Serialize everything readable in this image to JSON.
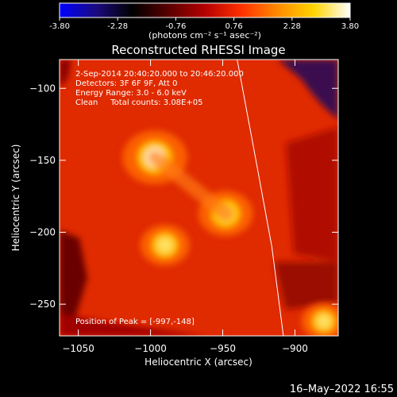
{
  "colorbar": {
    "ticks": [
      "-3.80",
      "-2.28",
      "-0.76",
      "0.76",
      "2.28",
      "3.80"
    ],
    "unit_label": "(photons cm⁻² s⁻¹ asec⁻²)",
    "colors": [
      "#0000ff",
      "#1a0a80",
      "#000000",
      "#5a0000",
      "#b40000",
      "#ff3000",
      "#ff8a00",
      "#ffd400",
      "#ffffff"
    ]
  },
  "chart_data": {
    "type": "heatmap",
    "title": "Reconstructed RHESSI Image",
    "xlabel": "Heliocentric X (arcsec)",
    "ylabel": "Heliocentric Y (arcsec)",
    "xlim": [
      -1063,
      -870
    ],
    "ylim": [
      -272,
      -80
    ],
    "xticks": [
      -1050,
      -1000,
      -950,
      -900
    ],
    "yticks": [
      -100,
      -150,
      -200,
      -250
    ],
    "annotations": [
      "2-Sep-2014 20:40:20.000 to 20:46:20.000",
      "Detectors: 3F 6F 9F, Att 0",
      "Energy Range: 3.0 - 6.0 keV",
      "Clean     Total counts: 3.08E+05"
    ],
    "peak_label": "Position of Peak = [-997,-148]",
    "sources": [
      {
        "x": -997,
        "y": -148,
        "intensity": 3.8
      },
      {
        "x": -948,
        "y": -187,
        "intensity": 3.2
      },
      {
        "x": -990,
        "y": -209,
        "intensity": 2.9
      },
      {
        "x": -880,
        "y": -262,
        "intensity": 2.6
      }
    ],
    "limb_curve": [
      [
        -940,
        -80
      ],
      [
        -927,
        -150
      ],
      [
        -916,
        -210
      ],
      [
        -908,
        -272
      ]
    ]
  },
  "footer": {
    "timestamp": "16–May–2022 16:55"
  }
}
